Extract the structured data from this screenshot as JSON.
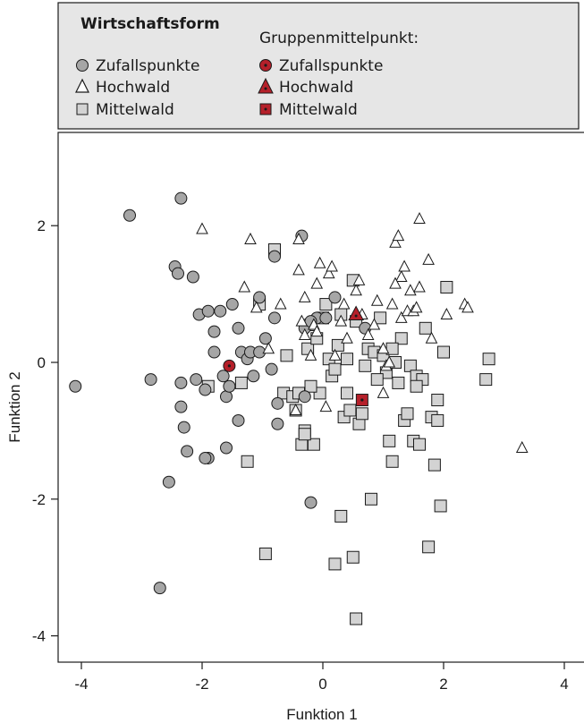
{
  "chart_data": {
    "type": "scatter",
    "xlabel": "Funktion 1",
    "ylabel": "Funktion 2",
    "xlim": [
      -4.4,
      4.4
    ],
    "ylim": [
      -4.45,
      3.2
    ],
    "xticks": [
      -4,
      -2,
      0,
      2,
      4
    ],
    "yticks": [
      -4,
      -2,
      0,
      2
    ],
    "xtick_labels": [
      "-4",
      "-2",
      "0",
      "2",
      "4"
    ],
    "ytick_labels": [
      "-4",
      "-2",
      "0",
      "2"
    ],
    "legend": {
      "title": "Wirtschaftsform",
      "placement": "top-left",
      "entries": [
        "Zufallspunkte",
        "Hochwald",
        "Mittelwald"
      ],
      "centroid_title": "Gruppenmittelpunkt:",
      "centroid_entries": [
        "Zufallspunkte",
        "Hochwald",
        "Mittelwald"
      ]
    },
    "colors": {
      "zufall_fill": "#a6a6a6",
      "mittel_fill": "#d3d3d3",
      "hoch_fill": "#ffffff",
      "centroid_fill": "#b5202a",
      "legend_bg": "#e6e6e6"
    },
    "series": [
      {
        "name": "Zufallspunkte",
        "marker": "circle",
        "points": [
          [
            -4.1,
            -0.35
          ],
          [
            -3.2,
            2.15
          ],
          [
            -2.85,
            -0.25
          ],
          [
            -2.7,
            -3.3
          ],
          [
            -2.55,
            -1.75
          ],
          [
            -2.35,
            2.4
          ],
          [
            -2.45,
            1.4
          ],
          [
            -2.35,
            -0.3
          ],
          [
            -2.35,
            -0.65
          ],
          [
            -2.3,
            -0.95
          ],
          [
            -2.25,
            -1.3
          ],
          [
            -2.1,
            -0.25
          ],
          [
            -2.15,
            1.25
          ],
          [
            -2.05,
            0.7
          ],
          [
            -1.9,
            0.75
          ],
          [
            -1.8,
            0.45
          ],
          [
            -1.7,
            0.75
          ],
          [
            -1.9,
            -1.4
          ],
          [
            -1.95,
            -1.4
          ],
          [
            -1.8,
            0.15
          ],
          [
            -1.65,
            -0.2
          ],
          [
            -1.6,
            -0.5
          ],
          [
            -1.55,
            -0.35
          ],
          [
            -1.5,
            0.85
          ],
          [
            -1.4,
            0.5
          ],
          [
            -1.4,
            -0.85
          ],
          [
            -1.35,
            0.15
          ],
          [
            -1.25,
            0.05
          ],
          [
            -1.2,
            0.15
          ],
          [
            -1.15,
            -0.2
          ],
          [
            -1.05,
            0.95
          ],
          [
            -1.05,
            0.15
          ],
          [
            -0.95,
            0.35
          ],
          [
            -0.85,
            -0.1
          ],
          [
            -0.8,
            0.65
          ],
          [
            -0.75,
            -0.6
          ],
          [
            -0.75,
            -0.9
          ],
          [
            -0.8,
            1.55
          ],
          [
            -0.35,
            1.85
          ],
          [
            -0.3,
            -0.5
          ],
          [
            -0.3,
            0.5
          ],
          [
            -0.2,
            -2.05
          ],
          [
            -0.1,
            0.65
          ],
          [
            0.2,
            0.95
          ],
          [
            0.7,
            0.5
          ],
          [
            -1.6,
            -1.25
          ],
          [
            -0.2,
            0.6
          ],
          [
            0.05,
            0.65
          ],
          [
            -2.4,
            1.3
          ],
          [
            -1.95,
            -0.4
          ]
        ]
      },
      {
        "name": "Hochwald",
        "marker": "triangle",
        "points": [
          [
            -2.0,
            1.95
          ],
          [
            -1.3,
            1.1
          ],
          [
            -1.2,
            1.8
          ],
          [
            -1.1,
            0.8
          ],
          [
            -0.7,
            0.85
          ],
          [
            -0.4,
            1.35
          ],
          [
            -0.4,
            1.8
          ],
          [
            -0.35,
            0.6
          ],
          [
            -0.3,
            0.4
          ],
          [
            -0.3,
            0.95
          ],
          [
            -0.2,
            0.1
          ],
          [
            -0.15,
            0.55
          ],
          [
            -0.1,
            1.15
          ],
          [
            -0.05,
            1.45
          ],
          [
            -0.1,
            0.45
          ],
          [
            0.05,
            -0.65
          ],
          [
            0.1,
            1.3
          ],
          [
            0.15,
            1.4
          ],
          [
            0.2,
            0.1
          ],
          [
            0.3,
            0.6
          ],
          [
            0.35,
            0.85
          ],
          [
            0.4,
            0.35
          ],
          [
            0.55,
            1.05
          ],
          [
            0.6,
            1.2
          ],
          [
            0.65,
            0.7
          ],
          [
            0.75,
            0.4
          ],
          [
            0.85,
            0.55
          ],
          [
            1.0,
            -0.45
          ],
          [
            1.05,
            -0.05
          ],
          [
            1.1,
            0.0
          ],
          [
            1.15,
            0.85
          ],
          [
            1.2,
            1.75
          ],
          [
            1.25,
            1.85
          ],
          [
            1.3,
            1.25
          ],
          [
            1.3,
            0.65
          ],
          [
            1.4,
            0.75
          ],
          [
            1.45,
            1.05
          ],
          [
            1.5,
            0.75
          ],
          [
            1.55,
            0.8
          ],
          [
            1.6,
            2.1
          ],
          [
            1.75,
            1.5
          ],
          [
            1.8,
            0.35
          ],
          [
            2.05,
            0.7
          ],
          [
            2.35,
            0.85
          ],
          [
            2.4,
            0.8
          ],
          [
            3.3,
            -1.25
          ],
          [
            1.2,
            1.15
          ],
          [
            1.35,
            1.4
          ],
          [
            0.9,
            0.9
          ],
          [
            1.0,
            0.2
          ],
          [
            -0.45,
            -0.7
          ],
          [
            1.6,
            1.1
          ],
          [
            -0.9,
            0.2
          ]
        ]
      },
      {
        "name": "Mittelwald",
        "marker": "square",
        "points": [
          [
            -1.9,
            -0.35
          ],
          [
            -1.35,
            -0.3
          ],
          [
            -1.25,
            -1.45
          ],
          [
            -1.05,
            0.85
          ],
          [
            -0.95,
            -2.8
          ],
          [
            -0.8,
            1.65
          ],
          [
            -0.65,
            -0.45
          ],
          [
            -0.6,
            0.1
          ],
          [
            -0.5,
            -0.5
          ],
          [
            -0.45,
            -0.7
          ],
          [
            -0.4,
            -0.45
          ],
          [
            -0.35,
            -1.2
          ],
          [
            -0.3,
            -1.0
          ],
          [
            -0.25,
            0.2
          ],
          [
            -0.2,
            0.55
          ],
          [
            -0.15,
            -1.2
          ],
          [
            -0.1,
            0.35
          ],
          [
            -0.05,
            -0.45
          ],
          [
            0.0,
            0.65
          ],
          [
            0.05,
            0.85
          ],
          [
            0.1,
            0.05
          ],
          [
            0.15,
            -0.2
          ],
          [
            0.2,
            -0.1
          ],
          [
            0.25,
            0.25
          ],
          [
            0.3,
            0.7
          ],
          [
            0.35,
            -0.8
          ],
          [
            0.4,
            -0.45
          ],
          [
            0.45,
            -0.7
          ],
          [
            0.5,
            1.2
          ],
          [
            0.5,
            -2.85
          ],
          [
            0.55,
            -3.75
          ],
          [
            0.6,
            -0.9
          ],
          [
            0.65,
            -0.75
          ],
          [
            0.7,
            -0.05
          ],
          [
            0.75,
            0.2
          ],
          [
            0.8,
            -2.0
          ],
          [
            0.85,
            0.15
          ],
          [
            0.95,
            0.65
          ],
          [
            1.0,
            0.1
          ],
          [
            1.05,
            -0.15
          ],
          [
            1.1,
            -1.15
          ],
          [
            1.15,
            -1.45
          ],
          [
            1.2,
            0.0
          ],
          [
            1.25,
            -0.3
          ],
          [
            1.3,
            0.35
          ],
          [
            1.35,
            -0.85
          ],
          [
            1.4,
            -0.75
          ],
          [
            1.45,
            -0.05
          ],
          [
            1.5,
            -1.15
          ],
          [
            1.55,
            -0.2
          ],
          [
            1.6,
            -1.2
          ],
          [
            1.65,
            -0.25
          ],
          [
            1.7,
            0.5
          ],
          [
            1.75,
            -2.7
          ],
          [
            1.8,
            -0.8
          ],
          [
            1.85,
            -1.5
          ],
          [
            1.9,
            -0.55
          ],
          [
            1.9,
            -0.85
          ],
          [
            1.95,
            -2.1
          ],
          [
            2.0,
            0.15
          ],
          [
            2.05,
            1.1
          ],
          [
            2.7,
            -0.25
          ],
          [
            2.75,
            0.05
          ],
          [
            0.3,
            -2.25
          ],
          [
            0.2,
            -2.95
          ],
          [
            -0.3,
            -1.05
          ],
          [
            0.55,
            0.6
          ],
          [
            0.9,
            -0.25
          ],
          [
            1.15,
            0.2
          ],
          [
            -0.2,
            -0.35
          ],
          [
            0.4,
            0.05
          ],
          [
            1.55,
            -0.35
          ]
        ]
      }
    ],
    "centroids": [
      {
        "name": "Zufallspunkte",
        "marker": "circle",
        "x": -1.55,
        "y": -0.05
      },
      {
        "name": "Hochwald",
        "marker": "triangle",
        "x": 0.55,
        "y": 0.7
      },
      {
        "name": "Mittelwald",
        "marker": "square",
        "x": 0.65,
        "y": -0.55
      }
    ]
  }
}
